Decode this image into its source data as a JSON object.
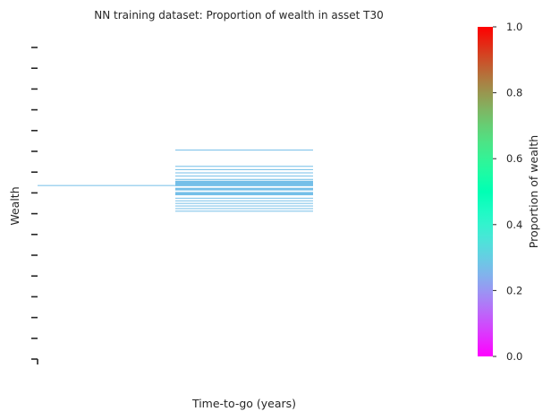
{
  "chart_data": {
    "type": "heatmap",
    "title": "NN training dataset: Proportion of wealth in asset T30",
    "xlabel": "Time-to-go (years)",
    "ylabel": "Wealth",
    "grid": false,
    "colorbar": {
      "label": "Proportion of wealth",
      "colormap": "rainbow",
      "range": [
        0.0,
        1.0
      ],
      "ticks": [
        "0.0",
        "0.2",
        "0.4",
        "0.6",
        "0.8",
        "1.0"
      ]
    },
    "series": [
      {
        "time_column": 0,
        "rows": [
          {
            "wealth_level": 0.455,
            "value": 0.27
          }
        ]
      },
      {
        "time_column": 1,
        "rows": [
          {
            "wealth_level": 0.346,
            "value": 0.27
          },
          {
            "wealth_level": 0.396,
            "value": 0.27
          },
          {
            "wealth_level": 0.406,
            "value": 0.27
          },
          {
            "wealth_level": 0.416,
            "value": 0.27
          },
          {
            "wealth_level": 0.426,
            "value": 0.27
          },
          {
            "wealth_level": 0.436,
            "value": 0.27
          },
          {
            "wealth_level": 0.444,
            "value": 0.27,
            "span": 0.008
          },
          {
            "wealth_level": 0.452,
            "value": 0.27,
            "span": 0.01
          },
          {
            "wealth_level": 0.466,
            "value": 0.27,
            "span": 0.008
          },
          {
            "wealth_level": 0.48,
            "value": 0.27,
            "span": 0.01
          },
          {
            "wealth_level": 0.494,
            "value": 0.27
          },
          {
            "wealth_level": 0.502,
            "value": 0.27
          },
          {
            "wealth_level": 0.51,
            "value": 0.27
          },
          {
            "wealth_level": 0.518,
            "value": 0.27
          },
          {
            "wealth_level": 0.526,
            "value": 0.27
          },
          {
            "wealth_level": 0.534,
            "value": 0.27
          }
        ]
      }
    ],
    "time_columns": 3,
    "y_tick_count": 16
  }
}
